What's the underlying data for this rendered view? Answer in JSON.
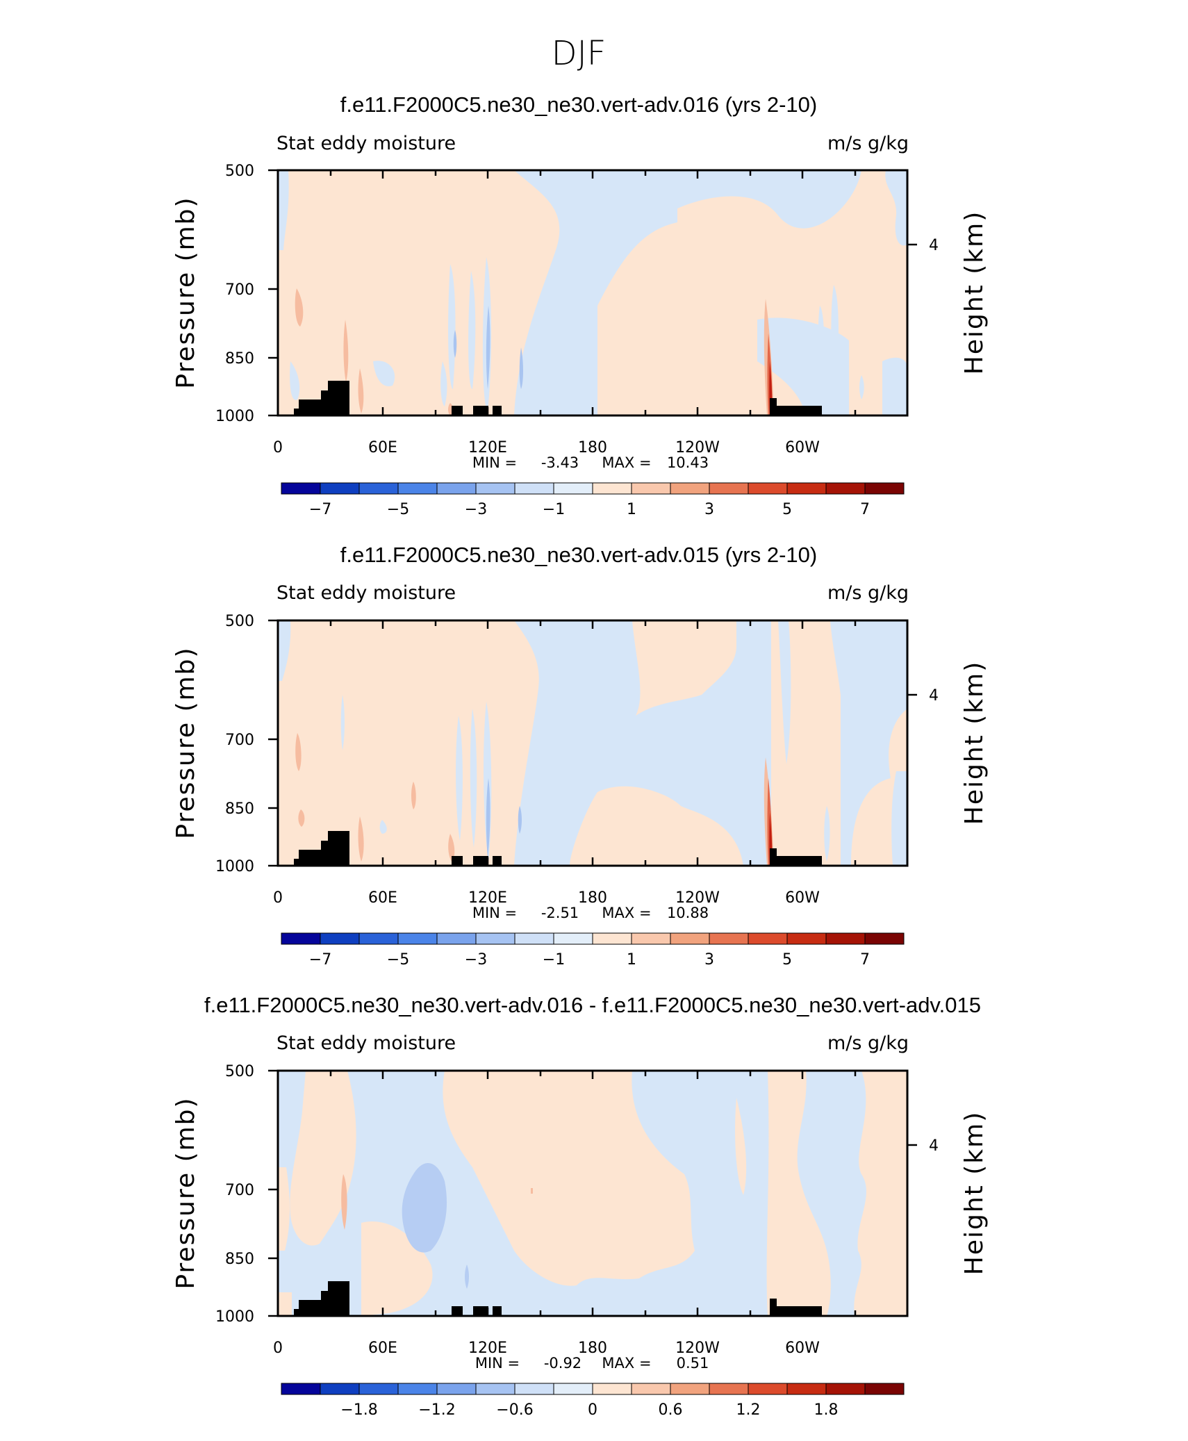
{
  "figure_title": "DJF",
  "chart_data": [
    {
      "type": "heatmap",
      "title": "f.e11.F2000C5.ne30_ne30.vert-adv.016 (yrs 2-10)",
      "left_label": "Stat eddy moisture",
      "right_label": "m/s g/kg",
      "ylabel": "Pressure (mb)",
      "y2label": "Height (km)",
      "y_ticks": [
        "500",
        "700",
        "850",
        "1000"
      ],
      "y2_ticks": [
        "4"
      ],
      "x_ticks": [
        "0",
        "60E",
        "120E",
        "180",
        "120W",
        "60W"
      ],
      "min_label": "MIN =",
      "min_value": "-3.43",
      "max_label": "MAX =",
      "max_value": "10.43",
      "colorbar_ticks": [
        "−7",
        "−5",
        "−3",
        "−1",
        "1",
        "3",
        "5",
        "7"
      ],
      "colorbar_range": [
        -8,
        8
      ]
    },
    {
      "type": "heatmap",
      "title": "f.e11.F2000C5.ne30_ne30.vert-adv.015 (yrs 2-10)",
      "left_label": "Stat eddy moisture",
      "right_label": "m/s g/kg",
      "ylabel": "Pressure (mb)",
      "y2label": "Height (km)",
      "y_ticks": [
        "500",
        "700",
        "850",
        "1000"
      ],
      "y2_ticks": [
        "4"
      ],
      "x_ticks": [
        "0",
        "60E",
        "120E",
        "180",
        "120W",
        "60W"
      ],
      "min_label": "MIN =",
      "min_value": "-2.51",
      "max_label": "MAX =",
      "max_value": "10.88",
      "colorbar_ticks": [
        "−7",
        "−5",
        "−3",
        "−1",
        "1",
        "3",
        "5",
        "7"
      ],
      "colorbar_range": [
        -8,
        8
      ]
    },
    {
      "type": "heatmap",
      "title": "f.e11.F2000C5.ne30_ne30.vert-adv.016 - f.e11.F2000C5.ne30_ne30.vert-adv.015",
      "left_label": "Stat eddy moisture",
      "right_label": "m/s g/kg",
      "ylabel": "Pressure (mb)",
      "y2label": "Height (km)",
      "y_ticks": [
        "500",
        "700",
        "850",
        "1000"
      ],
      "y2_ticks": [
        "4"
      ],
      "x_ticks": [
        "0",
        "60E",
        "120E",
        "180",
        "120W",
        "60W"
      ],
      "min_label": "MIN =",
      "min_value": "-0.92",
      "max_label": "MAX =",
      "max_value": "0.51",
      "colorbar_ticks": [
        "−1.8",
        "−1.2",
        "−0.6",
        "0",
        "0.6",
        "1.2",
        "1.8"
      ],
      "colorbar_range": [
        -2.4,
        2.4
      ]
    }
  ],
  "colorbar_colors": [
    "#05059a",
    "#0f3fc0",
    "#2a62d8",
    "#4b84e8",
    "#7aa3ec",
    "#a6c3f2",
    "#cfe0f7",
    "#e3eef9",
    "#fde5d2",
    "#f9c8ad",
    "#f1a37e",
    "#e77451",
    "#dc4b2c",
    "#c72c12",
    "#a51306",
    "#7a0403"
  ]
}
